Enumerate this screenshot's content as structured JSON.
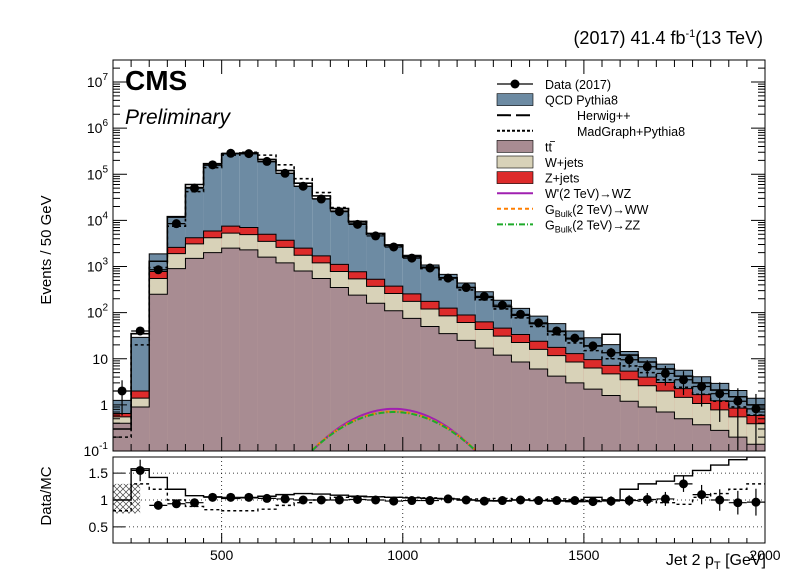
{
  "header": {
    "lumi_prefix": "(2017) 41.4 fb",
    "lumi_exp": "-1",
    "lumi_suffix": "(13 TeV)",
    "experiment": "CMS",
    "status": "Preliminary"
  },
  "chart_data": [
    {
      "type": "line",
      "title": "",
      "xlabel_main": "Jet 2 p",
      "xlabel_sub": "T",
      "xlabel_unit": " [GeV]",
      "ylabel": "Events / 50 GeV",
      "xlim": [
        200,
        2000
      ],
      "ylim": [
        0.1,
        30000000
      ],
      "yscale": "log",
      "xticks": [
        500,
        1000,
        1500,
        2000
      ],
      "xtick_labels": [
        "500",
        "1000",
        "1500",
        "2000"
      ],
      "yticks": [
        0.1,
        1,
        10,
        100,
        1000,
        10000,
        100000,
        1000000,
        10000000
      ],
      "ytick_labels": [
        {
          "base": "10",
          "exp": "-1"
        },
        {
          "base": "1",
          "exp": ""
        },
        {
          "base": "10",
          "exp": ""
        },
        {
          "base": "10",
          "exp": "2"
        },
        {
          "base": "10",
          "exp": "3"
        },
        {
          "base": "10",
          "exp": "4"
        },
        {
          "base": "10",
          "exp": "5"
        },
        {
          "base": "10",
          "exp": "6"
        },
        {
          "base": "10",
          "exp": "7"
        }
      ],
      "bin_edges": [
        200,
        250,
        300,
        350,
        400,
        450,
        500,
        550,
        600,
        650,
        700,
        750,
        800,
        850,
        900,
        950,
        1000,
        1050,
        1100,
        1150,
        1200,
        1250,
        1300,
        1350,
        1400,
        1450,
        1500,
        1550,
        1600,
        1650,
        1700,
        1750,
        1800,
        1850,
        1900,
        1950,
        2000
      ],
      "stack": [
        {
          "name": "t#bar{t}",
          "label": "tt",
          "color": "#a88c92",
          "values": [
            0.4,
            0.9,
            250,
            900,
            1500,
            2000,
            2500,
            2300,
            1600,
            1200,
            800,
            550,
            350,
            240,
            160,
            110,
            75,
            50,
            35,
            25,
            17,
            12,
            8.5,
            6,
            4.2,
            3,
            2.2,
            1.6,
            1.2,
            0.9,
            0.7,
            0.5,
            0.37,
            0.28,
            0.2,
            0.14
          ]
        },
        {
          "name": "W+jets",
          "label": "W+jets",
          "color": "#d8d2b8",
          "values": [
            0.15,
            0.5,
            300,
            1000,
            1600,
            2200,
            2800,
            2600,
            1900,
            1400,
            950,
            650,
            430,
            300,
            210,
            150,
            100,
            70,
            50,
            36,
            26,
            19,
            14,
            10,
            7.5,
            5.5,
            4.1,
            3.1,
            2.3,
            1.7,
            1.3,
            0.95,
            0.7,
            0.5,
            0.35,
            0.25
          ]
        },
        {
          "name": "Z+jets",
          "label": "Z+jets",
          "color": "#dd2b2b",
          "values": [
            0.1,
            0.6,
            230,
            700,
            1100,
            1700,
            2200,
            2100,
            1500,
            1100,
            750,
            500,
            330,
            230,
            160,
            115,
            80,
            55,
            40,
            28,
            20,
            15,
            11,
            8,
            6,
            4.4,
            3.3,
            2.5,
            1.9,
            1.4,
            1.05,
            0.8,
            0.6,
            0.45,
            0.3,
            0.2
          ]
        },
        {
          "name": "QCD Pythia8",
          "label": "QCD Pythia8",
          "color": "#6d8ba3",
          "values": [
            0.6,
            27,
            1100,
            9000,
            48000,
            150000,
            270000,
            270000,
            180000,
            100000,
            52000,
            28000,
            15000,
            8000,
            4500,
            2600,
            1500,
            900,
            550,
            350,
            220,
            140,
            90,
            60,
            40,
            27,
            19,
            13,
            9,
            6.5,
            4.6,
            3.4,
            2.4,
            1.7,
            1.2,
            0.8
          ]
        }
      ],
      "herwig_label": "Herwig++",
      "herwig": [
        0.3,
        35,
        1300,
        12000,
        60000,
        170000,
        280000,
        290000,
        210000,
        120000,
        64000,
        34000,
        18000,
        9500,
        5200,
        2900,
        1650,
        960,
        570,
        350,
        215,
        135,
        88,
        58,
        39,
        27,
        19,
        34,
        12,
        8.5,
        6,
        4.2,
        3,
        2.1,
        1.5,
        1.0
      ],
      "madgraph_label": "MadGraph+Pythia8",
      "madgraph": [
        0.2,
        20,
        950,
        7500,
        42000,
        140000,
        260000,
        300000,
        260000,
        160000,
        80000,
        40000,
        19000,
        9500,
        5000,
        2800,
        1600,
        900,
        520,
        310,
        190,
        120,
        77,
        50,
        33,
        22,
        15,
        10,
        7,
        5,
        3.5,
        2.4,
        1.7,
        1.2,
        0.9,
        0.6
      ],
      "data_label": "Data (2017)",
      "data_x": [
        225,
        275,
        325,
        375,
        425,
        475,
        525,
        575,
        625,
        675,
        725,
        775,
        825,
        875,
        925,
        975,
        1025,
        1075,
        1125,
        1175,
        1225,
        1275,
        1325,
        1375,
        1425,
        1475,
        1525,
        1575,
        1625,
        1675,
        1725,
        1775,
        1825,
        1875,
        1925,
        1975
      ],
      "data_y": [
        2,
        40,
        850,
        8500,
        50000,
        160000,
        285000,
        280000,
        190000,
        105000,
        55000,
        29000,
        15500,
        8200,
        4600,
        2650,
        1520,
        930,
        560,
        350,
        225,
        145,
        92,
        60,
        40,
        28,
        19,
        13.5,
        9.5,
        6.7,
        4.8,
        3.5,
        2.5,
        1.75,
        1.2,
        0.82
      ],
      "signals": [
        {
          "label_pre": "W'(2 TeV)",
          "label_sub": "",
          "label_post": "→WZ",
          "color": "#a020b0",
          "dash": "",
          "peak": 0.82,
          "mu": 975,
          "sigma": 110
        },
        {
          "label_pre": "G",
          "label_sub": "Bulk",
          "label_post": "(2 TeV)→WW",
          "color": "#ff7f00",
          "dash": "4,3",
          "peak": 0.72,
          "mu": 975,
          "sigma": 115
        },
        {
          "label_pre": "G",
          "label_sub": "Bulk",
          "label_post": "(2 TeV)→ZZ",
          "color": "#1eaa2a",
          "dash": "6,2,1,2",
          "peak": 0.7,
          "mu": 975,
          "sigma": 115
        }
      ]
    },
    {
      "type": "scatter",
      "title": "",
      "ylabel": "Data/MC",
      "xlim": [
        200,
        2000
      ],
      "ylim": [
        0.2,
        1.8
      ],
      "yticks": [
        0.5,
        1,
        1.5
      ],
      "ytick_labels": [
        "0.5",
        "1",
        "1.5"
      ],
      "xticks": [
        500,
        1000,
        1500,
        2000
      ],
      "ratio_x": [
        275,
        325,
        375,
        425,
        475,
        525,
        575,
        625,
        675,
        725,
        775,
        825,
        875,
        925,
        975,
        1025,
        1075,
        1125,
        1175,
        1225,
        1275,
        1325,
        1375,
        1425,
        1475,
        1525,
        1575,
        1625,
        1675,
        1725,
        1775,
        1825,
        1875,
        1925,
        1975
      ],
      "ratio_y": [
        1.55,
        0.9,
        0.93,
        0.95,
        1.05,
        1.05,
        1.05,
        1.03,
        1.02,
        1.0,
        1.0,
        1.0,
        1.01,
        1.0,
        0.98,
        0.99,
        0.99,
        1.02,
        1.0,
        0.98,
        0.99,
        1.0,
        0.99,
        0.99,
        0.99,
        0.97,
        0.98,
        0.99,
        1.01,
        1.02,
        1.3,
        1.1,
        1.0,
        0.95,
        0.96
      ],
      "ratio_err": [
        0.2,
        0.05,
        0.02,
        0.01,
        0.01,
        0.01,
        0.01,
        0.01,
        0.01,
        0.01,
        0.01,
        0.01,
        0.01,
        0.01,
        0.02,
        0.02,
        0.02,
        0.03,
        0.03,
        0.04,
        0.04,
        0.05,
        0.05,
        0.06,
        0.07,
        0.08,
        0.09,
        0.1,
        0.12,
        0.13,
        0.15,
        0.18,
        0.2,
        0.22,
        0.25
      ],
      "herwig_ratio": [
        1.0,
        1.58,
        1.42,
        1.2,
        1.08,
        1.06,
        1.03,
        1.04,
        1.07,
        1.1,
        1.12,
        1.11,
        1.09,
        1.07,
        1.06,
        1.05,
        1.04,
        1.03,
        1.02,
        1.0,
        0.99,
        0.98,
        1.0,
        0.99,
        0.98,
        0.97,
        1.05,
        1.0,
        1.2,
        1.3,
        1.35,
        1.45,
        1.55,
        1.65,
        1.75,
        1.8
      ],
      "madgraph_ratio": [
        0.8,
        1.3,
        1.2,
        1.0,
        0.88,
        0.82,
        0.8,
        0.8,
        0.83,
        0.9,
        0.95,
        1.0,
        1.05,
        1.06,
        1.06,
        1.05,
        1.05,
        1.04,
        1.03,
        1.02,
        1.02,
        1.03,
        1.02,
        1.01,
        1.02,
        1.01,
        0.99,
        1.0,
        1.0,
        0.98,
        0.95,
        0.92,
        1.05,
        1.12,
        1.2,
        1.3
      ]
    }
  ]
}
